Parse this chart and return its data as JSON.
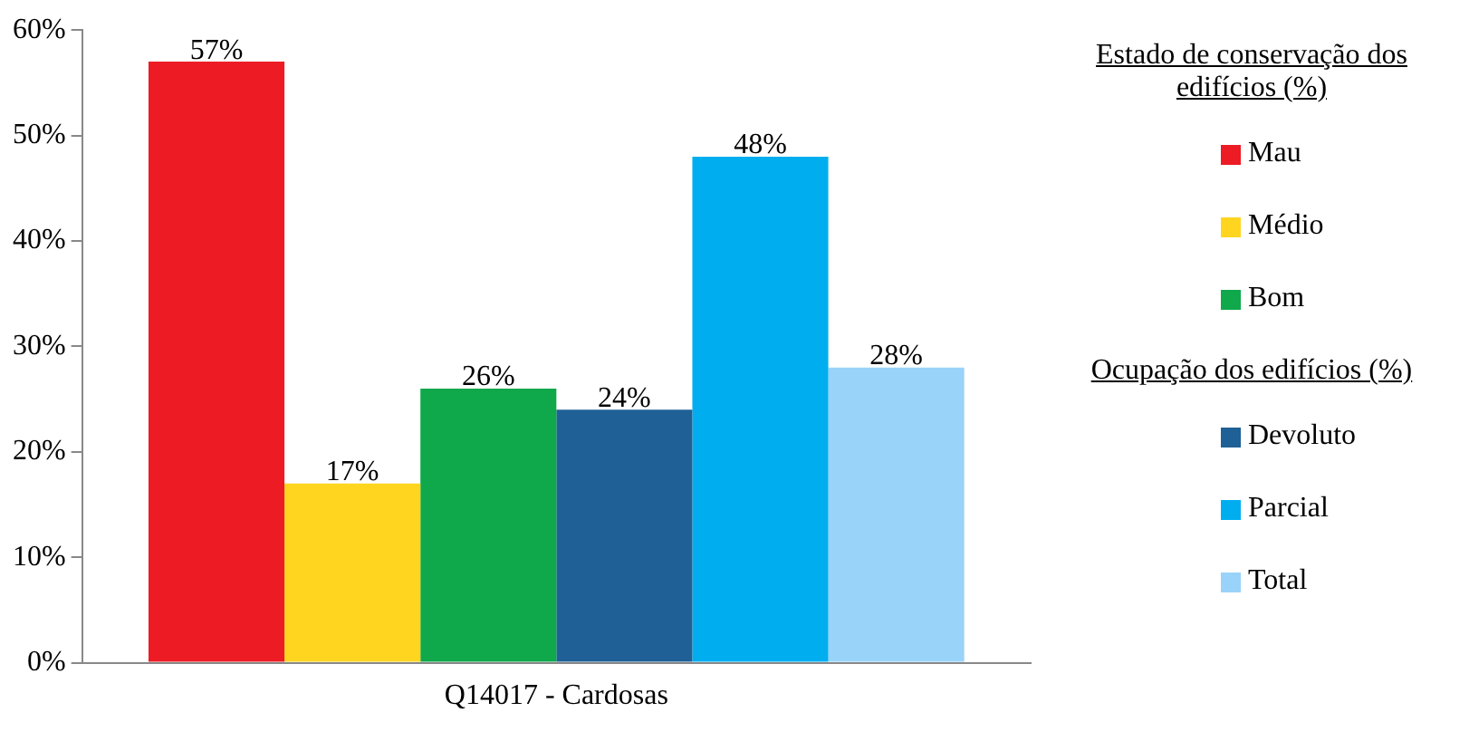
{
  "chart_data": {
    "type": "bar",
    "categories": [
      "Q14017 - Cardosas"
    ],
    "series": [
      {
        "name": "Mau",
        "color": "#ed1c24",
        "values": [
          57
        ],
        "value_labels": [
          "57%"
        ]
      },
      {
        "name": "Médio",
        "color": "#ffd520",
        "values": [
          17
        ],
        "value_labels": [
          "17%"
        ]
      },
      {
        "name": "Bom",
        "color": "#0fa84b",
        "values": [
          26
        ],
        "value_labels": [
          "26%"
        ]
      },
      {
        "name": "Devoluto",
        "color": "#1f6096",
        "values": [
          24
        ],
        "value_labels": [
          "24%"
        ]
      },
      {
        "name": "Parcial",
        "color": "#00aeef",
        "values": [
          48
        ],
        "value_labels": [
          "48%"
        ]
      },
      {
        "name": "Total",
        "color": "#99d3f9",
        "values": [
          28
        ],
        "value_labels": [
          "28%"
        ]
      }
    ],
    "ylim": [
      0,
      60
    ],
    "yticks": [
      {
        "value": 0,
        "label": "0%"
      },
      {
        "value": 10,
        "label": "10%"
      },
      {
        "value": 20,
        "label": "20%"
      },
      {
        "value": 30,
        "label": "30%"
      },
      {
        "value": 40,
        "label": "40%"
      },
      {
        "value": 50,
        "label": "50%"
      },
      {
        "value": 60,
        "label": "60%"
      }
    ],
    "grid": false,
    "legend": "right",
    "legend_title": "Estado de conservação dos edifícios (%)",
    "annotations": [
      "Ocupação dos edifícios (%)"
    ]
  }
}
